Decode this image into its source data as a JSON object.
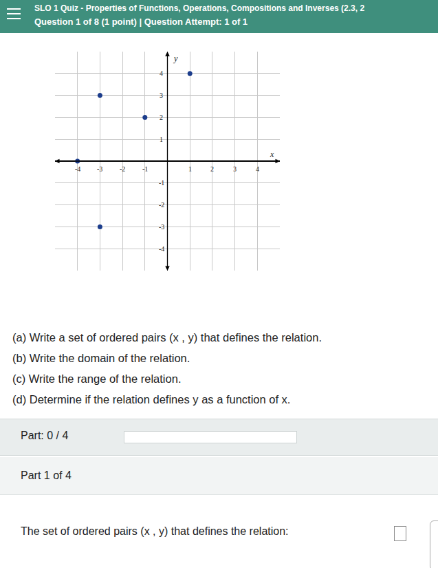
{
  "header": {
    "title": "SLO 1 Quiz - Properties of Functions, Operations, Compositions and Inverses (2.3, 2",
    "question": "Question 1 of 8 (1 point)  |  Question Attempt: 1 of 1"
  },
  "chart_data": {
    "type": "scatter",
    "x": [
      -4,
      -3,
      -3,
      -1,
      1
    ],
    "values": [
      0,
      3,
      -3,
      2,
      4
    ],
    "xlim": [
      -5,
      5
    ],
    "ylim": [
      -5,
      5
    ],
    "xticks": [
      -4,
      -3,
      -2,
      -1,
      1,
      2,
      3,
      4
    ],
    "yticks": [
      -4,
      -3,
      -2,
      -1,
      1,
      2,
      3,
      4
    ],
    "x_label": "x",
    "y_label": "y",
    "grid": true,
    "color": "#1c3d8c",
    "marker": "circle"
  },
  "questions": [
    "(a) Write a set of ordered pairs (x , y) that defines the relation.",
    "(b) Write the domain of the relation.",
    "(c) Write the range of the relation.",
    "(d) Determine if the relation defines y as a function of x."
  ],
  "progress": "Part: 0 / 4",
  "part": "Part 1 of 4",
  "prompt": "The set of ordered pairs (x , y) that defines the relation:"
}
